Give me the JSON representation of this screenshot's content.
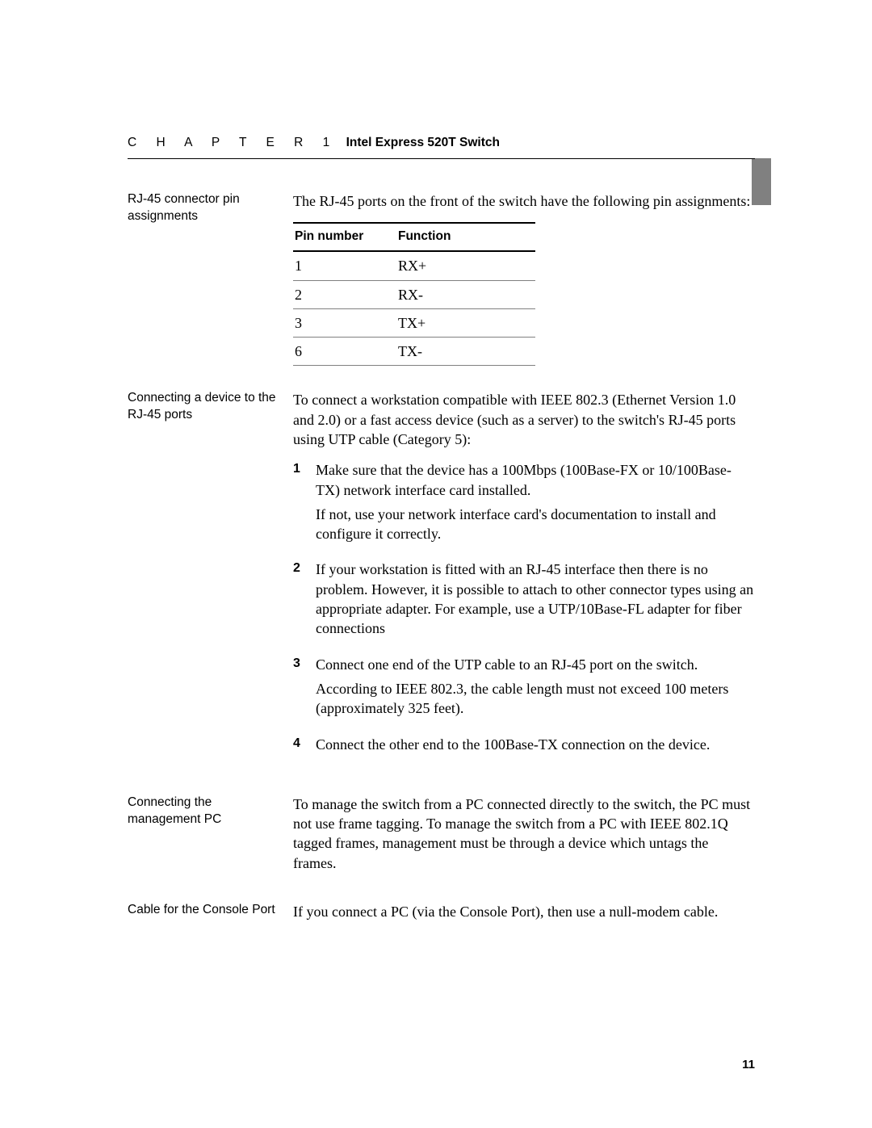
{
  "header": {
    "chapter_word": "C   H   A   P   T   E   R   1",
    "chapter_title": "Intel Express 520T Switch"
  },
  "sections": {
    "pin_assign": {
      "side": "RJ-45 connector pin assignments",
      "intro": "The RJ-45 ports on the front of the switch have the following pin assignments:",
      "table": {
        "col1": "Pin number",
        "col2": "Function",
        "rows": [
          {
            "pin": "1",
            "fn": "RX+"
          },
          {
            "pin": "2",
            "fn": "RX-"
          },
          {
            "pin": "3",
            "fn": "TX+"
          },
          {
            "pin": "6",
            "fn": "TX-"
          }
        ]
      }
    },
    "connect_device": {
      "side": "Connecting a device to the RJ-45 ports",
      "intro": "To connect a workstation compatible with IEEE 802.3 (Ethernet Version 1.0 and 2.0) or a fast access device (such as a server) to the switch's RJ-45 ports using UTP cable (Category 5):",
      "steps": [
        {
          "n": "1",
          "p1": "Make sure that the device has a 100Mbps (100Base-FX or 10/100Base-TX) network interface card installed.",
          "p2": "If not, use your network interface card's documentation to install and configure it correctly."
        },
        {
          "n": "2",
          "p1": "If your workstation is fitted with an RJ-45 interface then there is no problem. However, it is possible to attach to other connector types using an appropriate adapter. For example, use a UTP/10Base-FL adapter for fiber connections",
          "p2": ""
        },
        {
          "n": "3",
          "p1": "Connect one end of the UTP cable to an RJ-45 port on the switch.",
          "p2": "According to IEEE 802.3, the cable length must not exceed 100 meters (approximately 325 feet)."
        },
        {
          "n": "4",
          "p1": "Connect the other end to the 100Base-TX connection on the device.",
          "p2": ""
        }
      ]
    },
    "mgmt_pc": {
      "side": "Connecting the management PC",
      "body": "To manage the switch from a PC connected directly to the switch, the PC must not use frame tagging. To manage the switch from a PC with IEEE 802.1Q tagged frames, management must be through a device which untags the frames."
    },
    "console": {
      "side": "Cable for the Console Port",
      "body": "If you connect a PC (via the Console Port), then use a null-modem cable."
    }
  },
  "page_number": "11"
}
